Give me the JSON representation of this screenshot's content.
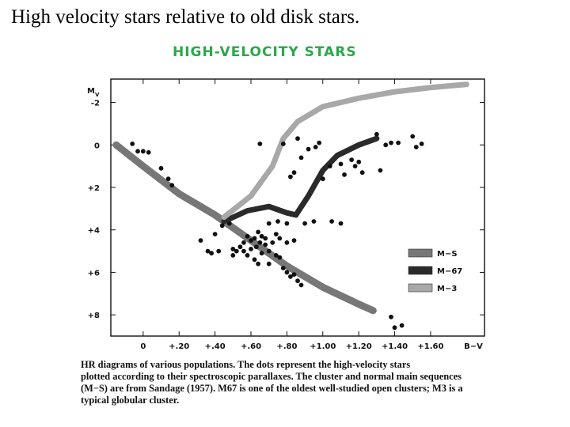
{
  "slide": {
    "title": "High velocity stars relative to old disk stars.",
    "handwritten_title": "HIGH-VELOCITY STARS"
  },
  "caption_lines": [
    "HR diagrams of various populations. The dots represent the high-velocity stars",
    "plotted according to their spectroscopic parallaxes. The cluster and normal main sequences",
    "(M−S) are from Sandage (1957). M67 is one of the oldest well-studied open clusters; M3 is a",
    "typical globular cluster."
  ],
  "chart_data": {
    "type": "scatter",
    "ylabel": "M",
    "ylabel_sub": "V",
    "xlabel": "B−V",
    "xlim": [
      -0.18,
      1.9
    ],
    "ylim": [
      9.0,
      -3.1
    ],
    "y_inverted": true,
    "x_ticks": [
      {
        "value": 0,
        "label": "0"
      },
      {
        "value": 0.2,
        "label": "+.20"
      },
      {
        "value": 0.4,
        "label": "+.40"
      },
      {
        "value": 0.6,
        "label": "+.60"
      },
      {
        "value": 0.8,
        "label": "+.80"
      },
      {
        "value": 1.0,
        "label": "+1.00"
      },
      {
        "value": 1.2,
        "label": "+1.20"
      },
      {
        "value": 1.4,
        "label": "+1.40"
      },
      {
        "value": 1.6,
        "label": "+1.60"
      }
    ],
    "y_ticks": [
      {
        "value": -2,
        "label": "-2"
      },
      {
        "value": 0,
        "label": "0"
      },
      {
        "value": 2,
        "label": "+2"
      },
      {
        "value": 4,
        "label": "+4"
      },
      {
        "value": 6,
        "label": "+6"
      },
      {
        "value": 8,
        "label": "+8"
      }
    ],
    "grid": false,
    "legend_position": "right-middle",
    "bands": [
      {
        "name": "M−S",
        "color": "#777777",
        "points": [
          [
            -0.15,
            0.0
          ],
          [
            0.0,
            1.0
          ],
          [
            0.2,
            2.3
          ],
          [
            0.4,
            3.3
          ],
          [
            0.6,
            4.5
          ],
          [
            0.8,
            5.7
          ],
          [
            1.0,
            6.7
          ],
          [
            1.2,
            7.5
          ],
          [
            1.28,
            7.8
          ]
        ]
      },
      {
        "name": "M−67",
        "color": "#2a2a2a",
        "points": [
          [
            0.45,
            3.6
          ],
          [
            0.58,
            3.1
          ],
          [
            0.7,
            2.9
          ],
          [
            0.8,
            3.2
          ],
          [
            0.85,
            3.3
          ],
          [
            0.92,
            2.4
          ],
          [
            1.0,
            1.2
          ],
          [
            1.08,
            0.5
          ],
          [
            1.2,
            0.0
          ],
          [
            1.3,
            -0.3
          ]
        ]
      },
      {
        "name": "M−3",
        "color": "#a8a8a8",
        "points": [
          [
            0.45,
            3.4
          ],
          [
            0.6,
            2.4
          ],
          [
            0.72,
            1.0
          ],
          [
            0.78,
            -0.3
          ],
          [
            0.86,
            -1.1
          ],
          [
            1.0,
            -1.8
          ],
          [
            1.2,
            -2.2
          ],
          [
            1.4,
            -2.5
          ],
          [
            1.6,
            -2.7
          ],
          [
            1.8,
            -2.85
          ]
        ]
      }
    ],
    "series": [
      {
        "name": "high-velocity stars",
        "points": [
          [
            -0.06,
            -0.05
          ],
          [
            -0.03,
            0.3
          ],
          [
            0.0,
            0.3
          ],
          [
            0.03,
            0.35
          ],
          [
            0.1,
            1.1
          ],
          [
            0.14,
            1.6
          ],
          [
            0.16,
            1.9
          ],
          [
            0.32,
            4.5
          ],
          [
            0.36,
            5.0
          ],
          [
            0.38,
            5.1
          ],
          [
            0.42,
            5.0
          ],
          [
            0.4,
            4.2
          ],
          [
            0.44,
            3.8
          ],
          [
            0.48,
            3.7
          ],
          [
            0.5,
            4.9
          ],
          [
            0.5,
            5.2
          ],
          [
            0.52,
            5.0
          ],
          [
            0.54,
            4.8
          ],
          [
            0.56,
            4.6
          ],
          [
            0.56,
            5.0
          ],
          [
            0.58,
            4.3
          ],
          [
            0.6,
            4.5
          ],
          [
            0.6,
            4.9
          ],
          [
            0.62,
            4.4
          ],
          [
            0.63,
            4.8
          ],
          [
            0.64,
            4.1
          ],
          [
            0.65,
            4.6
          ],
          [
            0.66,
            5.1
          ],
          [
            0.66,
            4.3
          ],
          [
            0.68,
            4.7
          ],
          [
            0.68,
            4.4
          ],
          [
            0.7,
            5.0
          ],
          [
            0.72,
            4.6
          ],
          [
            0.74,
            5.2
          ],
          [
            0.76,
            5.3
          ],
          [
            0.7,
            5.6
          ],
          [
            0.78,
            5.8
          ],
          [
            0.8,
            6.0
          ],
          [
            0.82,
            6.2
          ],
          [
            0.84,
            6.1
          ],
          [
            0.86,
            6.4
          ],
          [
            0.88,
            6.6
          ],
          [
            0.62,
            5.4
          ],
          [
            0.58,
            5.2
          ],
          [
            0.64,
            5.6
          ],
          [
            0.74,
            4.2
          ],
          [
            0.76,
            4.4
          ],
          [
            0.8,
            4.6
          ],
          [
            0.84,
            4.5
          ],
          [
            0.9,
            3.7
          ],
          [
            0.95,
            3.6
          ],
          [
            1.05,
            3.6
          ],
          [
            1.1,
            3.7
          ],
          [
            0.7,
            3.7
          ],
          [
            0.75,
            3.6
          ],
          [
            0.8,
            3.7
          ],
          [
            0.65,
            -0.05
          ],
          [
            0.78,
            -0.05
          ],
          [
            0.82,
            1.5
          ],
          [
            0.84,
            1.3
          ],
          [
            0.86,
            -0.3
          ],
          [
            0.88,
            0.6
          ],
          [
            0.92,
            0.2
          ],
          [
            0.96,
            0.1
          ],
          [
            0.98,
            -0.1
          ],
          [
            1.0,
            1.6
          ],
          [
            1.04,
            1.0
          ],
          [
            1.1,
            0.9
          ],
          [
            1.12,
            1.4
          ],
          [
            1.16,
            0.7
          ],
          [
            1.18,
            1.0
          ],
          [
            1.2,
            0.8
          ],
          [
            1.22,
            1.3
          ],
          [
            1.3,
            -0.5
          ],
          [
            1.35,
            0.0
          ],
          [
            1.38,
            -0.1
          ],
          [
            1.42,
            -0.1
          ],
          [
            1.5,
            -0.4
          ],
          [
            1.52,
            0.1
          ],
          [
            1.55,
            -0.05
          ],
          [
            1.32,
            1.2
          ],
          [
            1.38,
            8.1
          ],
          [
            1.4,
            8.6
          ],
          [
            1.44,
            8.5
          ]
        ]
      }
    ]
  }
}
